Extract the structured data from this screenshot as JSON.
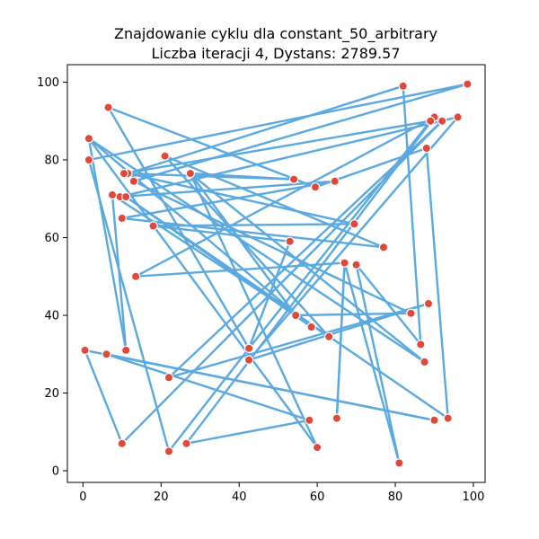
{
  "chart_data": {
    "type": "scatter",
    "title_lines": [
      "Znajdowanie cyklu dla constant_50_arbitrary",
      "Liczba iteracji 4, Dystans: 2789.57"
    ],
    "xlim": [
      -4,
      103
    ],
    "ylim": [
      -3,
      104.5
    ],
    "x_ticks": [
      0,
      20,
      40,
      60,
      80,
      100
    ],
    "y_ticks": [
      0,
      20,
      40,
      60,
      80,
      100
    ],
    "grid": false,
    "legend": "none",
    "colors": {
      "path": "#5aa9e0",
      "point": "#e0483a",
      "point_edge": "#ffffff",
      "frame": "#000000"
    },
    "tour": [
      [
        42.5,
        31.5
      ],
      [
        53,
        59
      ],
      [
        18,
        63
      ],
      [
        69.5,
        63.5
      ],
      [
        11.5,
        76.5
      ],
      [
        82,
        99
      ],
      [
        86.5,
        32.5
      ],
      [
        70,
        53
      ],
      [
        81,
        2
      ],
      [
        67,
        53.5
      ],
      [
        65,
        13.5
      ],
      [
        67,
        53.5
      ],
      [
        13.5,
        50
      ],
      [
        90,
        91
      ],
      [
        26.5,
        7
      ],
      [
        58,
        13
      ],
      [
        6,
        30
      ],
      [
        90,
        13
      ],
      [
        0.5,
        31
      ],
      [
        10,
        7
      ],
      [
        92,
        90
      ],
      [
        22,
        24
      ],
      [
        88.5,
        43
      ],
      [
        42.5,
        28.5
      ],
      [
        96,
        91
      ],
      [
        9.5,
        70.5
      ],
      [
        64.5,
        74.5
      ],
      [
        10,
        65
      ],
      [
        77,
        57.5
      ],
      [
        21,
        81
      ],
      [
        63,
        34.5
      ],
      [
        7.5,
        71
      ],
      [
        11,
        31
      ],
      [
        1.5,
        85.5
      ],
      [
        58.5,
        37
      ],
      [
        11,
        70.5
      ],
      [
        93.5,
        13.5
      ],
      [
        88,
        83
      ],
      [
        59.5,
        73
      ],
      [
        6.5,
        93.5
      ],
      [
        42.5,
        31.5
      ],
      [
        22,
        5
      ],
      [
        1.5,
        80
      ],
      [
        98.5,
        99.5
      ],
      [
        13,
        74.5
      ],
      [
        84,
        40.5
      ],
      [
        54.5,
        40
      ],
      [
        27.5,
        76.5
      ],
      [
        60,
        6
      ],
      [
        1.5,
        85.5
      ],
      [
        87.5,
        28
      ],
      [
        27.5,
        76.5
      ],
      [
        54,
        75
      ],
      [
        10.5,
        76.5
      ],
      [
        89,
        90
      ],
      [
        42.5,
        31.5
      ]
    ]
  }
}
